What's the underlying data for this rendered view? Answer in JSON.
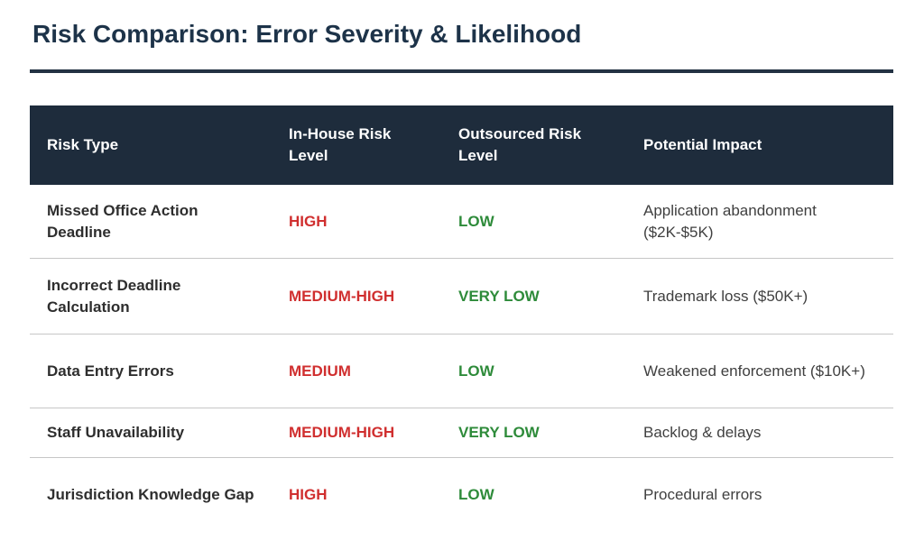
{
  "page": {
    "title": "Risk Comparison: Error Severity & Likelihood"
  },
  "colors": {
    "header_bg": "#1e2c3c",
    "title_text": "#1d3349",
    "accent_rule": "#233243",
    "in_house_risk": "#d02f2f",
    "outsourced_risk": "#2e8b3a",
    "row_divider": "#c6c6c6"
  },
  "table": {
    "headers": [
      "Risk Type",
      "In-House Risk Level",
      "Outsourced Risk Level",
      "Potential Impact"
    ],
    "rows": [
      {
        "risk_type": "Missed Office Action Deadline",
        "in_house": "HIGH",
        "outsourced": "LOW",
        "impact": "Application abandonment ($2K-$5K)"
      },
      {
        "risk_type": "Incorrect Deadline Calculation",
        "in_house": "MEDIUM-HIGH",
        "outsourced": "VERY LOW",
        "impact": "Trademark loss ($50K+)"
      },
      {
        "risk_type": "Data Entry Errors",
        "in_house": "MEDIUM",
        "outsourced": "LOW",
        "impact": "Weakened enforcement ($10K+)"
      },
      {
        "risk_type": "Staff Unavailability",
        "in_house": "MEDIUM-HIGH",
        "outsourced": "VERY LOW",
        "impact": "Backlog & delays"
      },
      {
        "risk_type": "Jurisdiction Knowledge Gap",
        "in_house": "HIGH",
        "outsourced": "LOW",
        "impact": "Procedural errors"
      }
    ]
  }
}
